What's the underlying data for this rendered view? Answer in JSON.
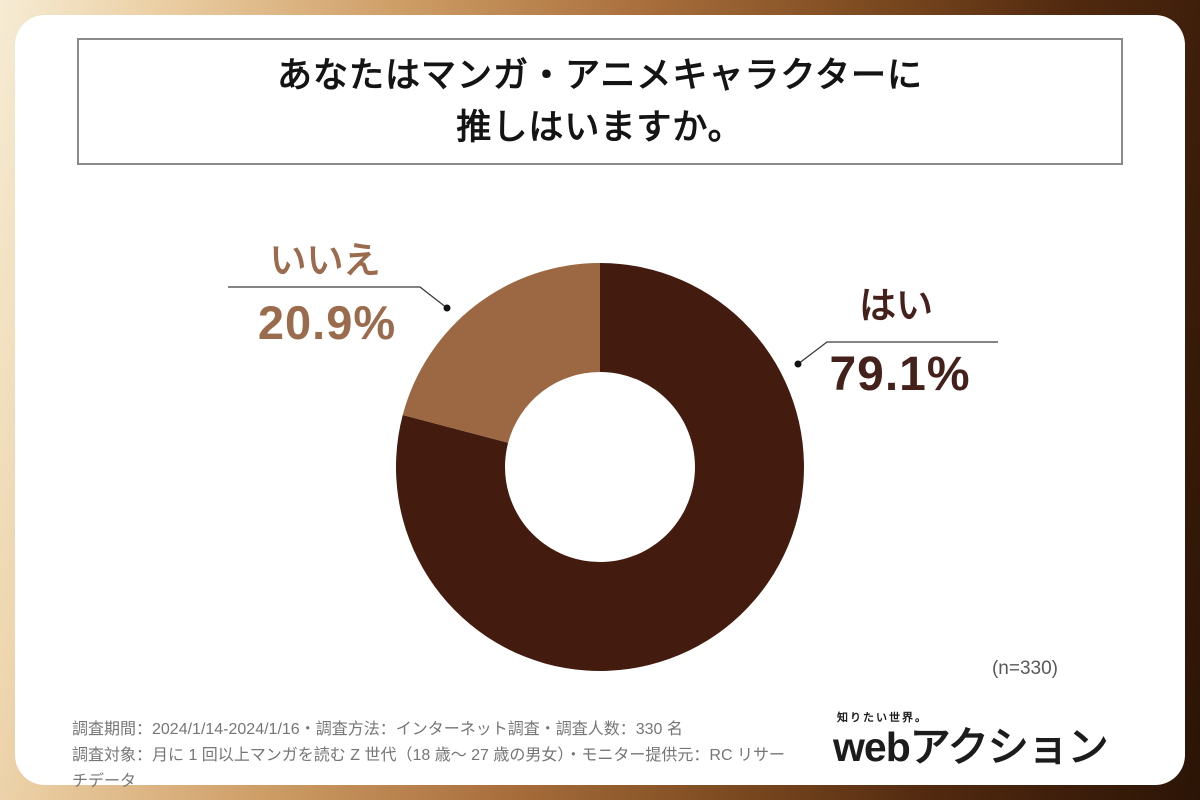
{
  "frame": {
    "gradient_start": "#f6ecd4",
    "gradient_end": "#2b1406",
    "card_background": "#ffffff"
  },
  "title": {
    "line1": "あなたはマンガ・アニメキャラクターに",
    "line2": "推しはいますか。"
  },
  "chart_data": {
    "type": "pie",
    "subtype": "donut",
    "title": "あなたはマンガ・アニメキャラクターに推しはいますか。",
    "n": 330,
    "inner_radius_ratio": 0.465,
    "start_angle": "top-clockwise",
    "legend_position": "callout-labels",
    "segments": [
      {
        "key": "yes",
        "label": "はい",
        "value": 79.1,
        "display": "79.1%",
        "color": "#431c0f",
        "label_color": "#45211b"
      },
      {
        "key": "no",
        "label": "いいえ",
        "value": 20.9,
        "display": "20.9%",
        "color": "#9c6843",
        "label_color": "#9a6b4c"
      }
    ]
  },
  "sample_note": "(n=330)",
  "footer": {
    "line1": "調査期間：2024/1/14-2024/1/16・調査方法：インターネット調査・調査人数：330 名",
    "line2": "調査対象：月に 1 回以上マンガを読む Z 世代（18 歳〜 27 歳の男女）・モニター提供元：RC リサーチデータ"
  },
  "logo": {
    "tagline": "知りたい世界。",
    "brand": "webアクション"
  }
}
